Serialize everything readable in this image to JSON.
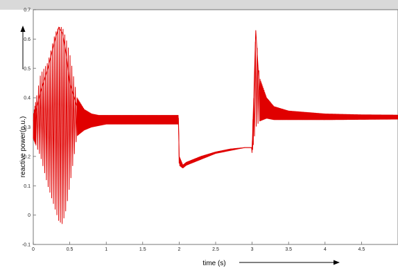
{
  "chart_data": {
    "type": "line",
    "title": "",
    "xlabel": "time (s)",
    "ylabel": "reactive power(p.u.)",
    "xlim": [
      0,
      5
    ],
    "ylim": [
      -0.1,
      0.7
    ],
    "x_ticks": [
      0,
      0.5,
      1,
      1.5,
      2,
      2.5,
      3,
      3.5,
      4,
      4.5
    ],
    "x_tick_labels": [
      "0",
      "0.5",
      "1",
      "1.5",
      "2",
      "2.5",
      "3",
      "3.5",
      "4",
      "4.5"
    ],
    "y_ticks": [
      -0.1,
      0,
      0.1,
      0.2,
      0.3,
      0.4,
      0.5,
      0.6,
      0.7
    ],
    "y_tick_labels": [
      "-0.1",
      "0",
      "0.1",
      "0.2",
      "0.3",
      "0.4",
      "0.5",
      "0.6",
      "0.7"
    ],
    "grid": false,
    "legend": "none",
    "series": [
      {
        "color": "#e00000",
        "x": [
          0,
          0.1,
          0.2,
          0.3,
          0.35,
          0.4,
          0.45,
          0.5,
          0.6,
          0.7,
          0.8,
          0.9,
          1.0,
          1.5,
          1.99,
          2.0,
          2.05,
          2.1,
          2.3,
          2.5,
          2.7,
          2.9,
          2.99,
          3.0,
          3.05,
          3.1,
          3.2,
          3.3,
          3.5,
          4.0,
          4.5,
          5.0
        ],
        "y": [
          0.32,
          0.42,
          0.5,
          0.6,
          0.64,
          0.62,
          0.55,
          0.45,
          0.37,
          0.34,
          0.33,
          0.33,
          0.325,
          0.325,
          0.33,
          0.2,
          0.17,
          0.18,
          0.2,
          0.215,
          0.225,
          0.23,
          0.23,
          0.22,
          0.63,
          0.43,
          0.38,
          0.355,
          0.345,
          0.335,
          0.333,
          0.333
        ],
        "upper": [
          0.34,
          0.48,
          0.52,
          0.62,
          0.64,
          0.64,
          0.6,
          0.55,
          0.4,
          0.36,
          0.345,
          0.34,
          0.34,
          0.34,
          0.34,
          0.2,
          0.17,
          0.18,
          0.2,
          0.215,
          0.225,
          0.23,
          0.23,
          0.23,
          0.63,
          0.47,
          0.4,
          0.37,
          0.355,
          0.345,
          0.342,
          0.341
        ],
        "lower": [
          0.26,
          0.2,
          0.1,
          0.02,
          -0.02,
          -0.03,
          0.02,
          0.1,
          0.27,
          0.29,
          0.3,
          0.305,
          0.31,
          0.31,
          0.31,
          0.17,
          0.16,
          0.17,
          0.19,
          0.21,
          0.22,
          0.23,
          0.23,
          0.21,
          0.3,
          0.32,
          0.33,
          0.325,
          0.325,
          0.325,
          0.326,
          0.327
        ]
      }
    ]
  }
}
